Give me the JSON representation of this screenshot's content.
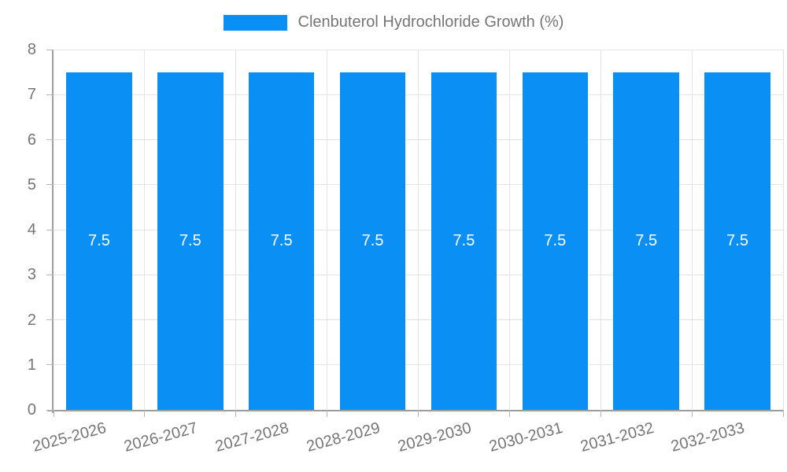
{
  "legend": {
    "label": "Clenbuterol Hydrochloride Growth (%)"
  },
  "chart_data": {
    "type": "bar",
    "title": "Clenbuterol Hydrochloride Growth (%)",
    "categories": [
      "2025-2026",
      "2026-2027",
      "2027-2028",
      "2028-2029",
      "2029-2030",
      "2030-2031",
      "2031-2032",
      "2032-2033"
    ],
    "values": [
      7.5,
      7.5,
      7.5,
      7.5,
      7.5,
      7.5,
      7.5,
      7.5
    ],
    "value_labels": [
      "7.5",
      "7.5",
      "7.5",
      "7.5",
      "7.5",
      "7.5",
      "7.5",
      "7.5"
    ],
    "xlabel": "",
    "ylabel": "",
    "ylim": [
      0,
      8
    ],
    "yticks": [
      0,
      1,
      2,
      3,
      4,
      5,
      6,
      7,
      8
    ],
    "grid": true,
    "legend_position": "top",
    "x_label_rotation_deg": -15,
    "colors": {
      "bar": "#0a90f4",
      "value_label": "#ffffff",
      "axis": "#9e9e9e",
      "gridline": "#e3e3e3",
      "tick_text": "#757575",
      "background": "#ffffff"
    }
  }
}
